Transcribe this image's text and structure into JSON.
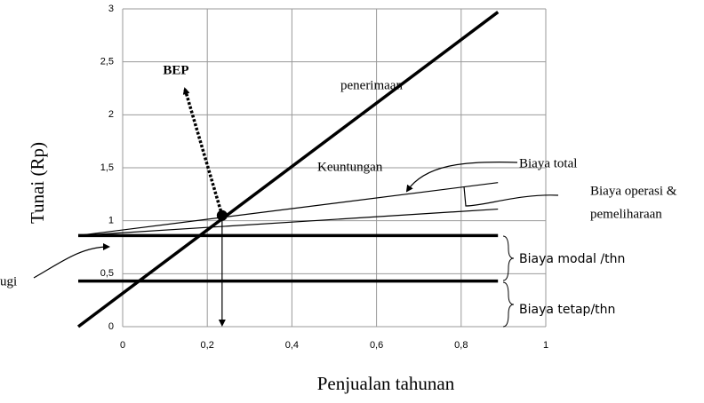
{
  "chart_data": {
    "type": "line",
    "x_label": "Penjualan tahunan",
    "y_label": "Tunai (Rp)",
    "xlim": [
      0,
      1
    ],
    "xticks": [
      0,
      {
        "value": 0.2,
        "label": "0,2"
      },
      {
        "value": 0.4,
        "label": "0,4"
      },
      {
        "value": 0.6,
        "label": "0,6"
      },
      {
        "value": 0.8,
        "label": "0,8"
      },
      1
    ],
    "ylim": [
      0,
      3
    ],
    "yticks": [
      0,
      {
        "value": 0.5,
        "label": "0,5"
      },
      1,
      {
        "value": 1.5,
        "label": "1,5"
      },
      2,
      {
        "value": 2.5,
        "label": "2,5"
      },
      3
    ],
    "grid": true,
    "color": "#000000",
    "series": [
      {
        "x": [
          -0.105,
          0.887
        ],
        "values": [
          0,
          2.97
        ]
      },
      {
        "x": [
          -0.105,
          0.887
        ],
        "values": [
          0.86,
          1.36
        ]
      },
      {
        "x": [
          -0.105,
          0.887
        ],
        "values": [
          0.86,
          1.11
        ]
      },
      {
        "x": [
          -0.105,
          0.887
        ],
        "values": [
          0.86,
          0.86
        ]
      },
      {
        "x": [
          -0.105,
          0.887
        ],
        "values": [
          0.43,
          0.43
        ]
      }
    ],
    "bep": {
      "x": 0.235,
      "y": 1.05
    },
    "annotations": [
      "BEP",
      "penerimaan",
      "Keuntungan",
      "Biaya total",
      "Biaya operasi &",
      "pemeliharaan",
      "Biaya modal /thn",
      "Biaya tetap/thn",
      "ugi"
    ]
  }
}
